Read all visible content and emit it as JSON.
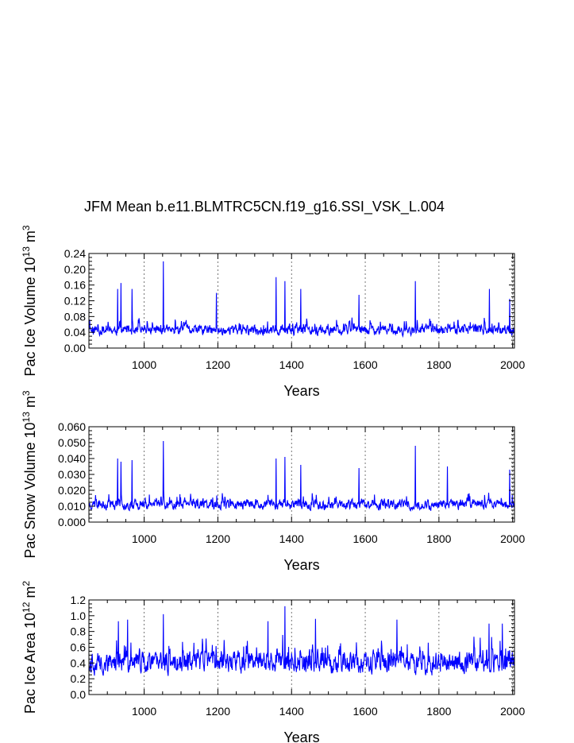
{
  "chart_data": {
    "title": "JFM Mean b.e11.BLMTRC5CN.f19_g16.SSI_VSK_L.004",
    "line_color": "#0000ff",
    "x_range": [
      850,
      2005
    ],
    "x_ticks": [
      1000,
      1200,
      1400,
      1600,
      1800,
      2000
    ],
    "x_tick_labels": [
      "1000",
      "1200",
      "1400",
      "1600",
      "1800",
      "2000"
    ],
    "grid": "dashed vertical lines at x ticks",
    "panels": [
      {
        "type": "line",
        "xlabel": "Years",
        "ylabel_main": "Pac Ice Volume 10",
        "ylabel_exp": "13",
        "ylabel_unit": " m",
        "ylabel_unit_exp": "3",
        "ylim": [
          0.0,
          0.24
        ],
        "y_ticks": [
          0,
          0.04,
          0.08,
          0.12,
          0.16,
          0.2,
          0.24
        ],
        "y_tick_labels": [
          "0.00",
          "0.04",
          "0.08",
          "0.12",
          "0.16",
          "0.20",
          "0.24"
        ],
        "base": 0.045,
        "amp": 0.018,
        "noise_min": 0.008,
        "peaks": [
          [
            928,
            0.15
          ],
          [
            937,
            0.165
          ],
          [
            967,
            0.15
          ],
          [
            1052,
            0.22
          ],
          [
            1196,
            0.14
          ],
          [
            1358,
            0.18
          ],
          [
            1382,
            0.17
          ],
          [
            1425,
            0.15
          ],
          [
            1583,
            0.135
          ],
          [
            1736,
            0.17
          ],
          [
            1937,
            0.15
          ],
          [
            1992,
            0.125
          ]
        ],
        "seed": 11
      },
      {
        "type": "line",
        "xlabel": "Years",
        "ylabel_main": "Pac Snow Volume 10",
        "ylabel_exp": "13",
        "ylabel_unit": " m",
        "ylabel_unit_exp": "3",
        "ylim": [
          0.0,
          0.06
        ],
        "y_ticks": [
          0,
          0.01,
          0.02,
          0.03,
          0.04,
          0.05,
          0.06
        ],
        "y_tick_labels": [
          "0.000",
          "0.010",
          "0.020",
          "0.030",
          "0.040",
          "0.050",
          "0.060"
        ],
        "base": 0.011,
        "amp": 0.0045,
        "noise_min": 0.002,
        "peaks": [
          [
            928,
            0.04
          ],
          [
            937,
            0.038
          ],
          [
            967,
            0.039
          ],
          [
            1052,
            0.051
          ],
          [
            1358,
            0.04
          ],
          [
            1382,
            0.041
          ],
          [
            1425,
            0.036
          ],
          [
            1583,
            0.034
          ],
          [
            1736,
            0.048
          ],
          [
            1823,
            0.035
          ],
          [
            1992,
            0.033
          ]
        ],
        "seed": 23
      },
      {
        "type": "line",
        "xlabel": "Years",
        "ylabel_main": "Pac Ice Area 10",
        "ylabel_exp": "12",
        "ylabel_unit": " m",
        "ylabel_unit_exp": "2",
        "ylim": [
          0.0,
          1.2
        ],
        "y_ticks": [
          0,
          0.2,
          0.4,
          0.6,
          0.8,
          1.0,
          1.2
        ],
        "y_tick_labels": [
          "0.0",
          "0.2",
          "0.4",
          "0.6",
          "0.8",
          "1.0",
          "1.2"
        ],
        "base": 0.4,
        "amp": 0.2,
        "noise_min": 0.08,
        "peaks": [
          [
            930,
            0.93
          ],
          [
            955,
            0.95
          ],
          [
            1052,
            1.02
          ],
          [
            1336,
            0.93
          ],
          [
            1382,
            1.12
          ],
          [
            1465,
            0.96
          ],
          [
            1686,
            0.95
          ],
          [
            1936,
            0.9
          ],
          [
            1972,
            0.9
          ]
        ],
        "seed": 37
      }
    ]
  }
}
